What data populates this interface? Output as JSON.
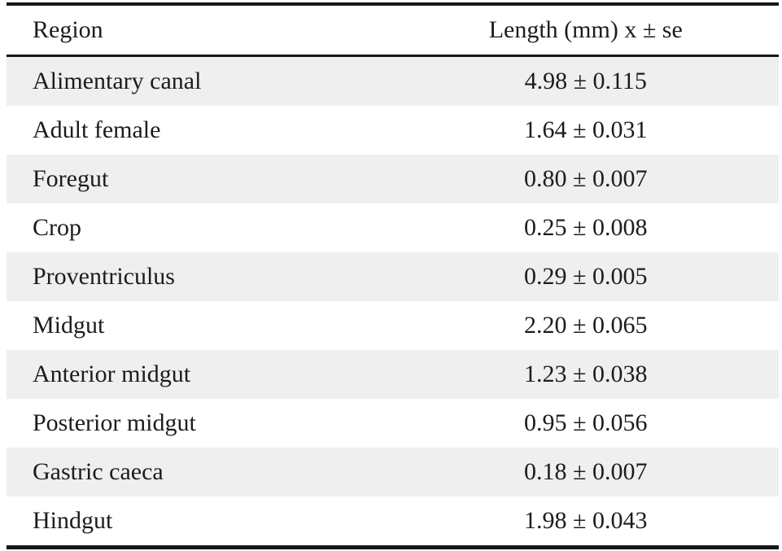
{
  "chart_data": {
    "type": "table",
    "title": "",
    "columns": [
      "Region",
      "Length (mm) x ± se"
    ],
    "rows": [
      [
        "Alimentary canal",
        "4.98 ± 0.115"
      ],
      [
        "Adult female",
        "1.64 ± 0.031"
      ],
      [
        "Foregut",
        "0.80 ± 0.007"
      ],
      [
        "Crop",
        "0.25 ± 0.008"
      ],
      [
        "Proventriculus",
        "0.29 ± 0.005"
      ],
      [
        "Midgut",
        "2.20 ± 0.065"
      ],
      [
        "Anterior midgut",
        "1.23 ± 0.038"
      ],
      [
        "Posterior midgut",
        "0.95 ± 0.056"
      ],
      [
        "Gastric caeca",
        "0.18 ± 0.007"
      ],
      [
        "Hindgut",
        "1.98 ± 0.043"
      ]
    ],
    "values_mm": {
      "Alimentary canal": {
        "mean": 4.98,
        "se": 0.115
      },
      "Adult female": {
        "mean": 1.64,
        "se": 0.031
      },
      "Foregut": {
        "mean": 0.8,
        "se": 0.007
      },
      "Crop": {
        "mean": 0.25,
        "se": 0.008
      },
      "Proventriculus": {
        "mean": 0.29,
        "se": 0.005
      },
      "Midgut": {
        "mean": 2.2,
        "se": 0.065
      },
      "Anterior midgut": {
        "mean": 1.23,
        "se": 0.038
      },
      "Posterior midgut": {
        "mean": 0.95,
        "se": 0.056
      },
      "Gastric caeca": {
        "mean": 0.18,
        "se": 0.007
      },
      "Hindgut": {
        "mean": 1.98,
        "se": 0.043
      }
    },
    "layout": {
      "striped_rows": "odd rows shaded starting with first data row",
      "grid": "horizontal rules only: thick top, thin under header, thick bottom"
    },
    "colors": {
      "stripe": "#efefef",
      "rule": "#161616",
      "text": "#1c1c1c",
      "background": "#ffffff"
    }
  }
}
